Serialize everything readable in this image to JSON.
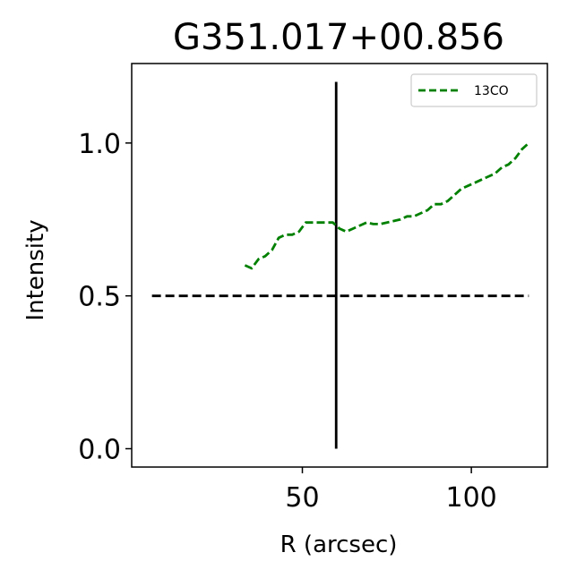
{
  "chart_data": {
    "type": "line",
    "title": "G351.017+00.856",
    "xlabel": "R (arcsec)",
    "ylabel": "Intensity",
    "xlim": [
      -0.5,
      122.5
    ],
    "ylim": [
      -0.06,
      1.26
    ],
    "xticks": [
      50,
      100
    ],
    "xtick_labels": [
      "50",
      "100"
    ],
    "yticks": [
      0.0,
      0.5,
      1.0
    ],
    "ytick_labels": [
      "0.0",
      "0.5",
      "1.0"
    ],
    "grid": false,
    "legend": {
      "position": "top-right",
      "entries": [
        "13CO"
      ]
    },
    "series": [
      {
        "name": "13CO",
        "color": "#008000",
        "style": "dashed",
        "x": [
          33,
          35,
          37,
          39,
          41,
          43,
          45,
          47,
          49,
          51,
          53,
          55,
          57,
          59,
          61,
          63,
          65,
          67,
          69,
          71,
          73,
          75,
          77,
          79,
          81,
          83,
          85,
          87,
          89,
          91,
          93,
          95,
          97,
          99,
          101,
          103,
          105,
          107,
          109,
          111,
          113,
          115,
          117
        ],
        "y": [
          0.6,
          0.59,
          0.62,
          0.63,
          0.65,
          0.69,
          0.7,
          0.7,
          0.71,
          0.74,
          0.74,
          0.74,
          0.74,
          0.74,
          0.72,
          0.71,
          0.72,
          0.73,
          0.74,
          0.735,
          0.735,
          0.74,
          0.745,
          0.75,
          0.76,
          0.76,
          0.77,
          0.78,
          0.8,
          0.8,
          0.81,
          0.83,
          0.85,
          0.86,
          0.87,
          0.88,
          0.89,
          0.9,
          0.92,
          0.93,
          0.95,
          0.98,
          1.0
        ]
      }
    ],
    "reference_lines": [
      {
        "orientation": "horizontal",
        "value": 0.5,
        "from": 5.5,
        "to": 117,
        "color": "#000000",
        "style": "dashed"
      },
      {
        "orientation": "vertical",
        "value": 60,
        "from": 0.0,
        "to": 1.2,
        "color": "#000000",
        "style": "solid"
      }
    ]
  }
}
